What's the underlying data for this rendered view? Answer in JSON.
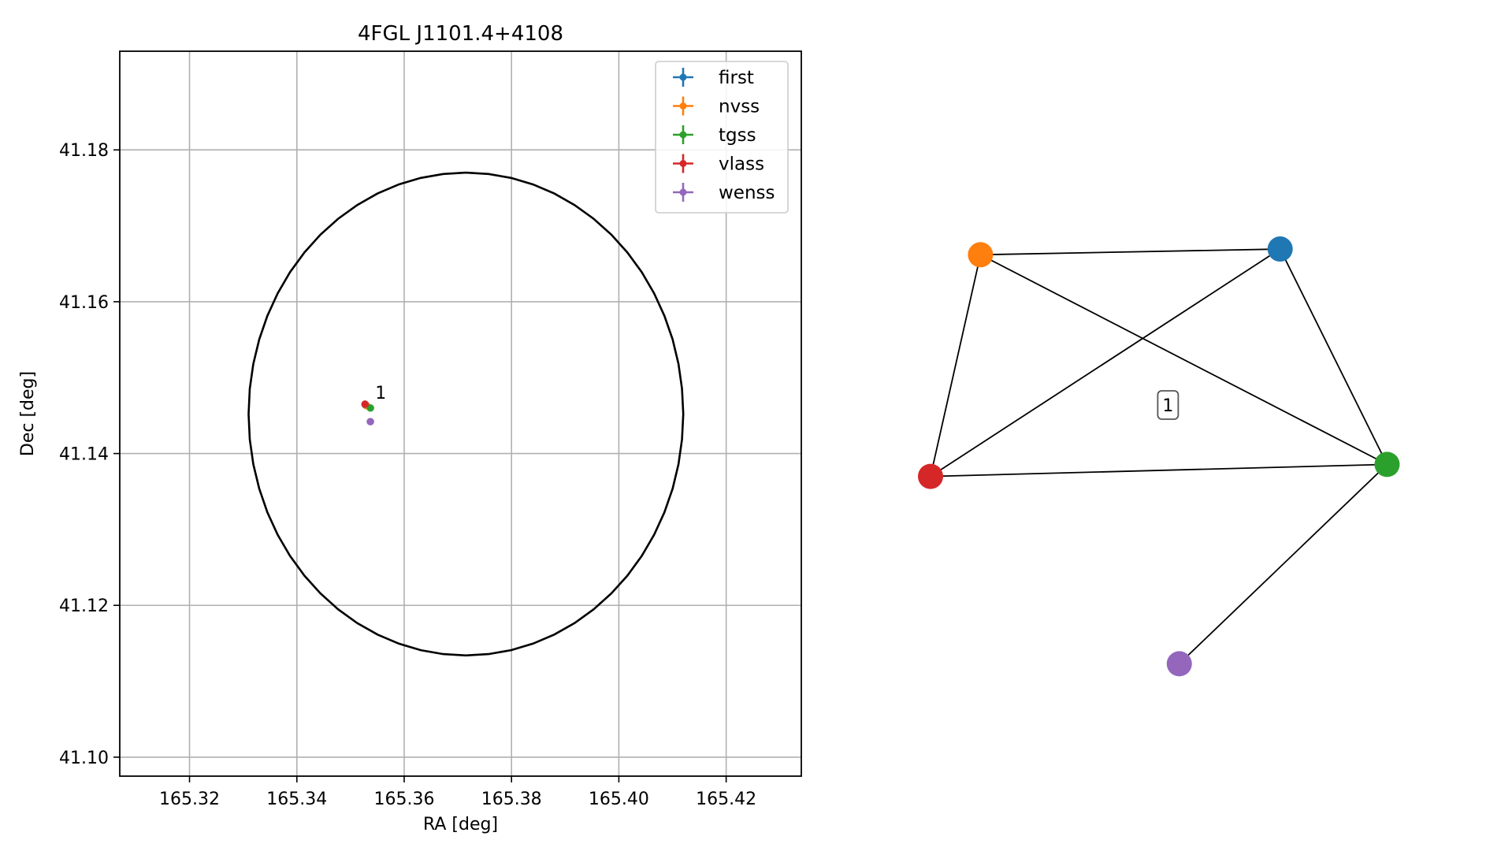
{
  "chart_data": [
    {
      "type": "scatter",
      "title": "4FGL J1101.4+4108",
      "xlabel": "RA [deg]",
      "ylabel": "Dec [deg]",
      "xlim": [
        165.307,
        165.434
      ],
      "ylim": [
        41.0975,
        41.193
      ],
      "grid": true,
      "legend_placement": "top-right",
      "x_ticks": [
        {
          "value": 165.32,
          "label": "165.32"
        },
        {
          "value": 165.34,
          "label": "165.34"
        },
        {
          "value": 165.36,
          "label": "165.36"
        },
        {
          "value": 165.38,
          "label": "165.38"
        },
        {
          "value": 165.4,
          "label": "165.40"
        },
        {
          "value": 165.42,
          "label": "165.42"
        }
      ],
      "y_ticks": [
        {
          "value": 41.1,
          "label": "41.10"
        },
        {
          "value": 41.12,
          "label": "41.12"
        },
        {
          "value": 41.14,
          "label": "41.14"
        },
        {
          "value": 41.16,
          "label": "41.16"
        },
        {
          "value": 41.18,
          "label": "41.18"
        }
      ],
      "ellipse": {
        "center": [
          165.3715,
          41.1452
        ],
        "semi_axis_ra": 0.0405,
        "semi_axis_dec": 0.0318
      },
      "series": [
        {
          "name": "first",
          "color": "#1f77b4",
          "x": 165.3528,
          "y": 41.1464
        },
        {
          "name": "nvss",
          "color": "#ff7f0e",
          "x": 165.353,
          "y": 41.1463
        },
        {
          "name": "tgss",
          "color": "#2ca02c",
          "x": 165.3537,
          "y": 41.146
        },
        {
          "name": "vlass",
          "color": "#d62728",
          "x": 165.3527,
          "y": 41.1465
        },
        {
          "name": "wenss",
          "color": "#9467bd",
          "x": 165.3537,
          "y": 41.1442
        }
      ],
      "annotations": [
        {
          "text": "1",
          "x": 165.3546,
          "y": 41.1472
        }
      ]
    },
    {
      "type": "network",
      "nodes": [
        {
          "id": "first",
          "color": "#1f77b4",
          "x": 0.742,
          "y": 0.862
        },
        {
          "id": "nvss",
          "color": "#ff7f0e",
          "x": 0.106,
          "y": 0.852
        },
        {
          "id": "tgss",
          "color": "#2ca02c",
          "x": 0.969,
          "y": 0.485
        },
        {
          "id": "vlass",
          "color": "#d62728",
          "x": 0.0,
          "y": 0.464
        },
        {
          "id": "wenss",
          "color": "#9467bd",
          "x": 0.528,
          "y": 0.136
        }
      ],
      "edges": [
        [
          "nvss",
          "first"
        ],
        [
          "nvss",
          "vlass"
        ],
        [
          "nvss",
          "tgss"
        ],
        [
          "first",
          "vlass"
        ],
        [
          "first",
          "tgss"
        ],
        [
          "vlass",
          "tgss"
        ],
        [
          "tgss",
          "wenss"
        ]
      ],
      "label": {
        "text": "1",
        "x": 0.504,
        "y": 0.589
      }
    }
  ]
}
